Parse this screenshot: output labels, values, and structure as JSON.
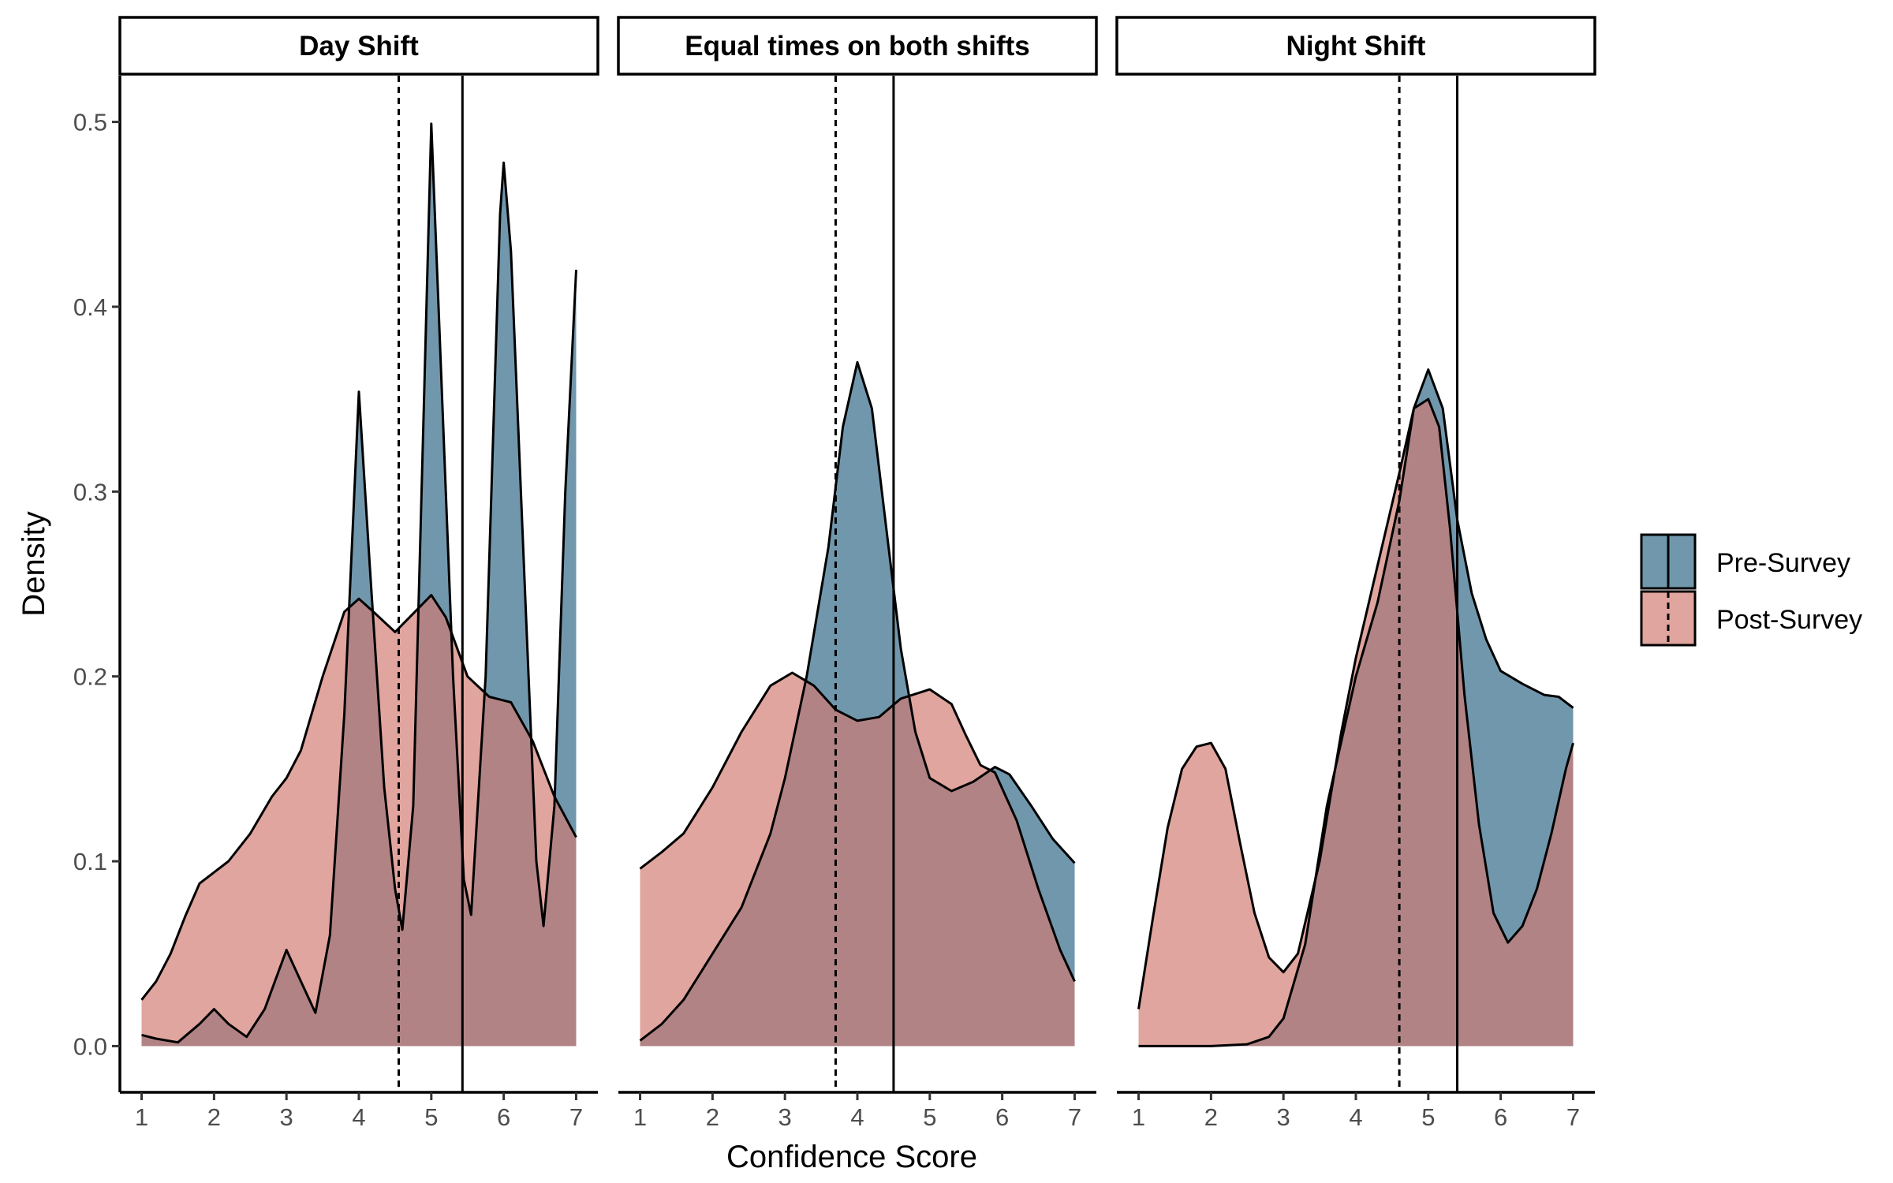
{
  "chart_data": {
    "type": "area",
    "xlabel": "Confidence Score",
    "ylabel": "Density",
    "xlim": [
      0.7,
      7.3
    ],
    "ylim": [
      -0.025,
      0.525
    ],
    "x_ticks": [
      "1",
      "2",
      "3",
      "4",
      "5",
      "6",
      "7"
    ],
    "y_ticks": [
      "0.0",
      "0.1",
      "0.2",
      "0.3",
      "0.4",
      "0.5"
    ],
    "grid": false,
    "legend_position": "right",
    "legend": [
      {
        "key": "pre",
        "label": "Pre-Survey",
        "color": "#4d7d99",
        "line": "solid"
      },
      {
        "key": "post",
        "label": "Post-Survey",
        "color": "#d17a70",
        "line": "dashed"
      }
    ],
    "colors": {
      "pre": "#4d7d99",
      "post": "#d17a70",
      "pre_opacity": 0.8,
      "post_opacity": 0.68
    },
    "panels": [
      {
        "title": "Day Shift",
        "pre_mean": 5.43,
        "post_mean": 4.55,
        "pre": [
          [
            1,
            0.006
          ],
          [
            1.2,
            0.004
          ],
          [
            1.5,
            0.002
          ],
          [
            1.8,
            0.012
          ],
          [
            2,
            0.02
          ],
          [
            2.2,
            0.012
          ],
          [
            2.45,
            0.005
          ],
          [
            2.7,
            0.02
          ],
          [
            3,
            0.052
          ],
          [
            3.2,
            0.035
          ],
          [
            3.4,
            0.018
          ],
          [
            3.6,
            0.06
          ],
          [
            3.8,
            0.18
          ],
          [
            4,
            0.354
          ],
          [
            4.15,
            0.26
          ],
          [
            4.35,
            0.14
          ],
          [
            4.5,
            0.085
          ],
          [
            4.6,
            0.063
          ],
          [
            4.75,
            0.13
          ],
          [
            4.9,
            0.35
          ],
          [
            5,
            0.499
          ],
          [
            5.1,
            0.4
          ],
          [
            5.3,
            0.2
          ],
          [
            5.45,
            0.09
          ],
          [
            5.55,
            0.071
          ],
          [
            5.75,
            0.2
          ],
          [
            5.95,
            0.45
          ],
          [
            6,
            0.478
          ],
          [
            6.1,
            0.43
          ],
          [
            6.3,
            0.24
          ],
          [
            6.45,
            0.1
          ],
          [
            6.55,
            0.065
          ],
          [
            6.7,
            0.13
          ],
          [
            6.85,
            0.3
          ],
          [
            7,
            0.42
          ]
        ],
        "post": [
          [
            1,
            0.025
          ],
          [
            1.2,
            0.035
          ],
          [
            1.4,
            0.05
          ],
          [
            1.6,
            0.07
          ],
          [
            1.8,
            0.088
          ],
          [
            2,
            0.094
          ],
          [
            2.2,
            0.1
          ],
          [
            2.5,
            0.115
          ],
          [
            2.8,
            0.135
          ],
          [
            3,
            0.145
          ],
          [
            3.2,
            0.16
          ],
          [
            3.5,
            0.2
          ],
          [
            3.8,
            0.235
          ],
          [
            4,
            0.242
          ],
          [
            4.2,
            0.235
          ],
          [
            4.5,
            0.224
          ],
          [
            4.8,
            0.236
          ],
          [
            5,
            0.244
          ],
          [
            5.2,
            0.232
          ],
          [
            5.5,
            0.2
          ],
          [
            5.8,
            0.189
          ],
          [
            6.1,
            0.186
          ],
          [
            6.4,
            0.165
          ],
          [
            6.7,
            0.135
          ],
          [
            7,
            0.113
          ]
        ]
      },
      {
        "title": "Equal times on both shifts",
        "pre_mean": 4.5,
        "post_mean": 3.7,
        "pre": [
          [
            1,
            0.003
          ],
          [
            1.3,
            0.012
          ],
          [
            1.6,
            0.025
          ],
          [
            2,
            0.05
          ],
          [
            2.4,
            0.075
          ],
          [
            2.8,
            0.115
          ],
          [
            3,
            0.145
          ],
          [
            3.3,
            0.2
          ],
          [
            3.6,
            0.27
          ],
          [
            3.8,
            0.335
          ],
          [
            4,
            0.37
          ],
          [
            4.2,
            0.345
          ],
          [
            4.4,
            0.28
          ],
          [
            4.6,
            0.215
          ],
          [
            4.8,
            0.17
          ],
          [
            5,
            0.145
          ],
          [
            5.3,
            0.138
          ],
          [
            5.6,
            0.143
          ],
          [
            5.9,
            0.151
          ],
          [
            6.1,
            0.147
          ],
          [
            6.4,
            0.13
          ],
          [
            6.7,
            0.112
          ],
          [
            7,
            0.099
          ]
        ],
        "post": [
          [
            1,
            0.096
          ],
          [
            1.3,
            0.105
          ],
          [
            1.6,
            0.115
          ],
          [
            2,
            0.14
          ],
          [
            2.4,
            0.17
          ],
          [
            2.8,
            0.195
          ],
          [
            3.1,
            0.202
          ],
          [
            3.4,
            0.195
          ],
          [
            3.7,
            0.182
          ],
          [
            4,
            0.176
          ],
          [
            4.3,
            0.178
          ],
          [
            4.6,
            0.188
          ],
          [
            5,
            0.193
          ],
          [
            5.3,
            0.185
          ],
          [
            5.5,
            0.168
          ],
          [
            5.7,
            0.152
          ],
          [
            5.9,
            0.148
          ],
          [
            6.2,
            0.122
          ],
          [
            6.5,
            0.085
          ],
          [
            6.8,
            0.052
          ],
          [
            7,
            0.035
          ]
        ]
      },
      {
        "title": "Night Shift",
        "pre_mean": 5.4,
        "post_mean": 4.6,
        "pre": [
          [
            1,
            0
          ],
          [
            1.5,
            0
          ],
          [
            2,
            0
          ],
          [
            2.5,
            0.001
          ],
          [
            2.8,
            0.005
          ],
          [
            3,
            0.015
          ],
          [
            3.3,
            0.055
          ],
          [
            3.6,
            0.13
          ],
          [
            4,
            0.2
          ],
          [
            4.3,
            0.24
          ],
          [
            4.6,
            0.295
          ],
          [
            4.8,
            0.345
          ],
          [
            5,
            0.366
          ],
          [
            5.2,
            0.345
          ],
          [
            5.4,
            0.285
          ],
          [
            5.6,
            0.245
          ],
          [
            5.8,
            0.22
          ],
          [
            6,
            0.203
          ],
          [
            6.3,
            0.196
          ],
          [
            6.6,
            0.19
          ],
          [
            6.8,
            0.189
          ],
          [
            7,
            0.183
          ]
        ],
        "post": [
          [
            1,
            0.02
          ],
          [
            1.2,
            0.07
          ],
          [
            1.4,
            0.118
          ],
          [
            1.6,
            0.15
          ],
          [
            1.8,
            0.162
          ],
          [
            2,
            0.164
          ],
          [
            2.2,
            0.15
          ],
          [
            2.4,
            0.11
          ],
          [
            2.6,
            0.072
          ],
          [
            2.8,
            0.048
          ],
          [
            3,
            0.04
          ],
          [
            3.2,
            0.05
          ],
          [
            3.5,
            0.1
          ],
          [
            3.8,
            0.17
          ],
          [
            4,
            0.21
          ],
          [
            4.3,
            0.26
          ],
          [
            4.6,
            0.31
          ],
          [
            4.8,
            0.345
          ],
          [
            5,
            0.35
          ],
          [
            5.15,
            0.335
          ],
          [
            5.3,
            0.28
          ],
          [
            5.5,
            0.19
          ],
          [
            5.7,
            0.12
          ],
          [
            5.9,
            0.072
          ],
          [
            6.1,
            0.056
          ],
          [
            6.3,
            0.065
          ],
          [
            6.5,
            0.085
          ],
          [
            6.7,
            0.115
          ],
          [
            6.9,
            0.15
          ],
          [
            7,
            0.164
          ]
        ]
      }
    ]
  }
}
